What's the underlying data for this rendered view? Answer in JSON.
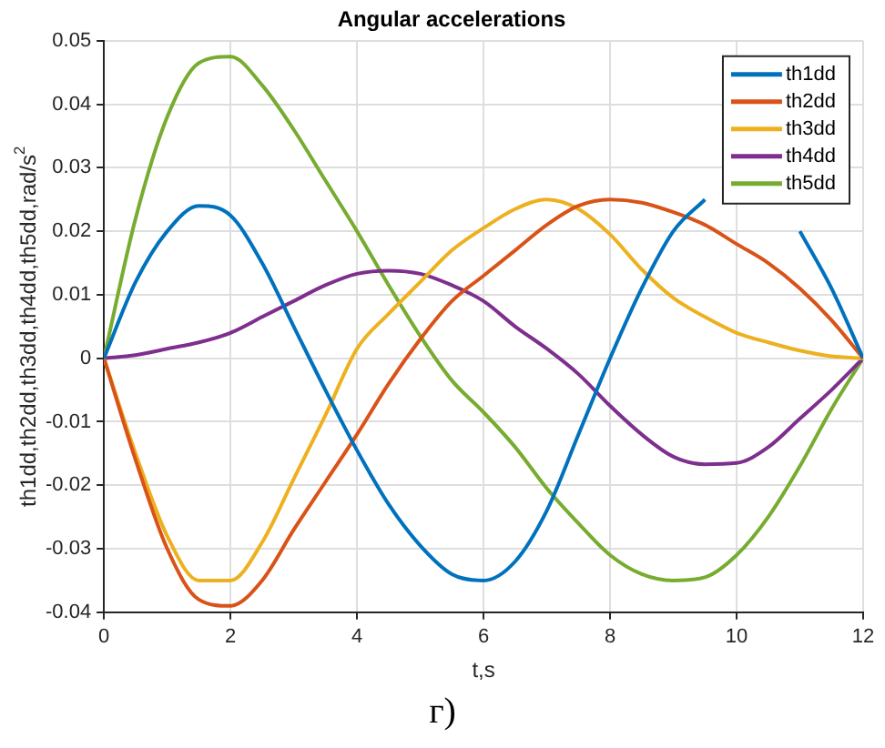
{
  "chart_data": {
    "type": "line",
    "title": "Angular accelerations",
    "xlabel": "t,s",
    "ylabel": "th1dd,th2dd,th3dd,th4dd,th5dd,rad/s$^{2}$",
    "annotations": [
      "г)"
    ],
    "x": [
      0,
      0.5,
      1,
      1.5,
      2,
      2.5,
      3,
      3.5,
      4,
      4.5,
      5,
      5.5,
      6,
      6.5,
      7,
      7.5,
      8,
      8.5,
      9,
      9.5,
      10,
      10.5,
      11,
      11.5,
      12
    ],
    "series": [
      {
        "name": "th1dd",
        "color": "#0072bd",
        "values": [
          0,
          0.012,
          0.02,
          0.024,
          0.0225,
          0.015,
          0.005,
          -0.005,
          -0.0145,
          -0.023,
          -0.0295,
          -0.034,
          -0.035,
          -0.032,
          -0.024,
          -0.012,
          0,
          0.011,
          0.02,
          0.025,
          null,
          null,
          0.02,
          0.011,
          0
        ]
      },
      {
        "name": "th2dd",
        "color": "#d95319",
        "values": [
          0,
          -0.016,
          -0.03,
          -0.038,
          -0.039,
          -0.035,
          -0.027,
          -0.0195,
          -0.012,
          -0.004,
          0.003,
          0.009,
          0.013,
          0.017,
          0.021,
          0.024,
          0.025,
          0.0245,
          0.023,
          0.021,
          0.018,
          0.015,
          0.011,
          0.006,
          0
        ]
      },
      {
        "name": "th3dd",
        "color": "#edb120",
        "values": [
          0,
          -0.015,
          -0.028,
          -0.035,
          -0.035,
          -0.029,
          -0.019,
          -0.009,
          0.0015,
          0.007,
          0.012,
          0.017,
          0.0205,
          0.0235,
          0.025,
          0.0235,
          0.0195,
          0.014,
          0.0095,
          0.0065,
          0.004,
          0.0025,
          0.0012,
          0.0003,
          0
        ]
      },
      {
        "name": "th4dd",
        "color": "#7e2f8e",
        "values": [
          0,
          0.0005,
          0.0015,
          0.0025,
          0.004,
          0.0065,
          0.009,
          0.0115,
          0.0133,
          0.0138,
          0.0133,
          0.0115,
          0.009,
          0.005,
          0.0015,
          -0.0025,
          -0.0075,
          -0.012,
          -0.0155,
          -0.0167,
          -0.0165,
          -0.014,
          -0.0095,
          -0.005,
          0
        ]
      },
      {
        "name": "th5dd",
        "color": "#77ac30",
        "values": [
          0,
          0.022,
          0.038,
          0.0465,
          0.0475,
          0.043,
          0.036,
          0.028,
          0.02,
          0.0115,
          0.0035,
          -0.0035,
          -0.0085,
          -0.014,
          -0.0205,
          -0.026,
          -0.031,
          -0.034,
          -0.035,
          -0.0345,
          -0.031,
          -0.025,
          -0.017,
          -0.008,
          0
        ]
      }
    ],
    "xlim": [
      0,
      12
    ],
    "xticks": [
      0,
      2,
      4,
      6,
      8,
      10,
      12
    ],
    "ylim": [
      -0.04,
      0.05
    ],
    "yticks": [
      -0.04,
      -0.03,
      -0.02,
      -0.01,
      0,
      0.01,
      0.02,
      0.03,
      0.04,
      0.05
    ],
    "grid": true,
    "legend": "top right"
  }
}
